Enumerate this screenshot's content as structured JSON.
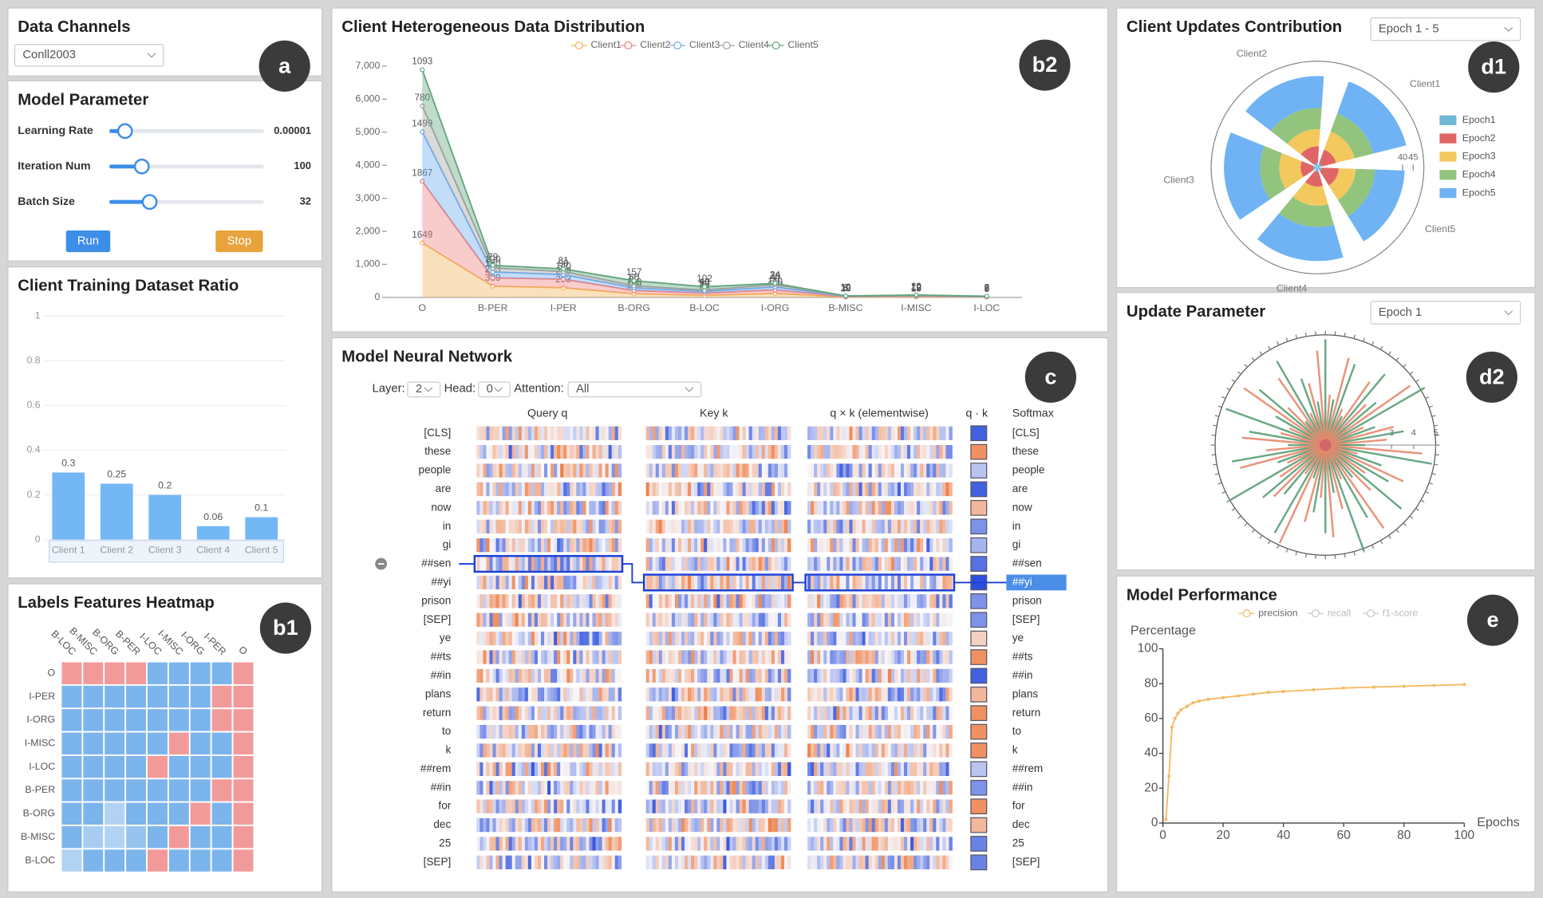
{
  "panels": {
    "data_channels": {
      "title": "Data Channels",
      "badge": "a",
      "dataset": "Conll2003"
    },
    "model_parameter": {
      "title": "Model Parameter",
      "params": [
        {
          "label": "Learning Rate",
          "value": 1e-05
        },
        {
          "label": "Iteration Num",
          "value": 100
        },
        {
          "label": "Batch Size",
          "value": 32
        }
      ],
      "buttons": [
        "Run",
        "Stop"
      ]
    },
    "dataset_ratio": {
      "title": "Client Training Dataset Ratio",
      "chart": {
        "type": "bar",
        "categories": [
          "Client 1",
          "Client 2",
          "Client 3",
          "Client 4",
          "Client 5"
        ],
        "values": [
          0.3,
          0.25,
          0.2,
          0.06,
          0.1
        ],
        "color": "#74b7f5",
        "ylim": [
          0,
          1
        ],
        "yticks": [
          0,
          0.2,
          0.4,
          0.6,
          0.8,
          1
        ],
        "grid": true
      }
    },
    "labels_heatmap": {
      "title": "Labels Features Heatmap",
      "badge": "b1",
      "chart": {
        "type": "heatmap",
        "x": [
          "B-LOC",
          "B-MISC",
          "B-ORG",
          "B-PER",
          "I-LOC",
          "I-MISC",
          "I-ORG",
          "I-PER",
          "O"
        ],
        "y": [
          "O",
          "I-PER",
          "I-ORG",
          "I-MISC",
          "I-LOC",
          "B-PER",
          "B-ORG",
          "B-MISC",
          "B-LOC"
        ],
        "values": [
          [
            1,
            1,
            1,
            1,
            0,
            0,
            0,
            0,
            1
          ],
          [
            0,
            0,
            0,
            0,
            0,
            0,
            0,
            1,
            1
          ],
          [
            0,
            0,
            0,
            0,
            0,
            0,
            0,
            1,
            1
          ],
          [
            0,
            0,
            0,
            0,
            0,
            1,
            0,
            0,
            1
          ],
          [
            0,
            0,
            0,
            0,
            1,
            0,
            0,
            0,
            1
          ],
          [
            0,
            0,
            0,
            0,
            0,
            0,
            0,
            1,
            1
          ],
          [
            0,
            0,
            0.3,
            0,
            0,
            0,
            1,
            0,
            1
          ],
          [
            0,
            0.25,
            0.3,
            0.15,
            0,
            1,
            0,
            0,
            1
          ],
          [
            0.3,
            0,
            0,
            0,
            1,
            0,
            0,
            0,
            1
          ]
        ]
      }
    },
    "distribution": {
      "title": "Client Heterogeneous Data Distribution",
      "badge": "b2",
      "chart": {
        "type": "stacked-area",
        "categories": [
          "O",
          "B-PER",
          "I-PER",
          "B-ORG",
          "B-LOC",
          "I-ORG",
          "B-MISC",
          "I-MISC",
          "I-LOC"
        ],
        "series": [
          {
            "name": "Client1",
            "color": "#f3b35a",
            "values": [
              1649,
              339,
              293,
              110,
              60,
              120,
              10,
              15,
              8
            ]
          },
          {
            "name": "Client2",
            "color": "#ef7f7f",
            "values": [
              1867,
              253,
              258,
              100,
              70,
              110,
              12,
              18,
              9
            ]
          },
          {
            "name": "Client3",
            "color": "#6aaaf0",
            "values": [
              1499,
              180,
              140,
              80,
              50,
              90,
              8,
              12,
              7
            ]
          },
          {
            "name": "Client4",
            "color": "#a3a3a3",
            "values": [
              780,
              120,
              90,
              60,
              40,
              70,
              6,
              10,
              5
            ]
          },
          {
            "name": "Client5",
            "color": "#62a57e",
            "values": [
              1093,
              79,
              81,
              157,
              102,
              34,
              10,
              20,
              8
            ]
          }
        ],
        "ylim": [
          0,
          7000
        ],
        "yticks": [
          0,
          {
            "value": 1000,
            "label": "1,000"
          },
          {
            "value": 2000,
            "label": "2,000"
          },
          {
            "value": 3000,
            "label": "3,000"
          },
          {
            "value": 4000,
            "label": "4,000"
          },
          {
            "value": 5000,
            "label": "5,000"
          },
          {
            "value": 6000,
            "label": "6,000"
          },
          {
            "value": 7000,
            "label": "7,000"
          }
        ]
      }
    },
    "network": {
      "title": "Model Neural Network",
      "badge": "c",
      "controls": {
        "layer_label": "Layer:",
        "layer": 2,
        "head_label": "Head:",
        "head": 0,
        "attention_label": "Attention:",
        "attention": "All"
      },
      "columns": [
        "Query q",
        "Key k",
        "q × k (elementwise)",
        "q · k",
        "Softmax"
      ],
      "tokens": [
        "[CLS]",
        "these",
        "people",
        "are",
        "now",
        "in",
        "gi",
        "##sen",
        "##yi",
        "prison",
        "[SEP]",
        "ye",
        "##ts",
        "##in",
        "plans",
        "return",
        "to",
        "k",
        "##rem",
        "##in",
        "for",
        "dec",
        "25",
        "[SEP]"
      ],
      "scores": [
        -0.9,
        0.8,
        -0.3,
        -0.9,
        0.5,
        -0.6,
        -0.4,
        -0.8,
        -1,
        -0.6,
        -0.6,
        0.3,
        0.8,
        -0.9,
        0.5,
        0.8,
        0.8,
        0.8,
        -0.3,
        -0.6,
        0.8,
        0.5,
        -0.7,
        -0.7
      ]
    },
    "contribution": {
      "title": "Client Updates Contribution",
      "badge": "d1",
      "epoch_select": "Epoch 1 - 5",
      "chart": {
        "type": "polar-bar",
        "categories": [
          "Client1",
          "Client2",
          "Client3",
          "Client4",
          "Client5"
        ],
        "series": [
          {
            "name": "Epoch1",
            "color": "#6fb8d8",
            "values": [
              2,
              2,
              2,
              2,
              2
            ]
          },
          {
            "name": "Epoch2",
            "color": "#e06666",
            "values": [
              7,
              8,
              6,
              7,
              8
            ]
          },
          {
            "name": "Epoch3",
            "color": "#f3c95e",
            "values": [
              9,
              8,
              10,
              9,
              8
            ]
          },
          {
            "name": "Epoch4",
            "color": "#93c47d",
            "values": [
              9,
              10,
              9,
              10,
              9
            ]
          },
          {
            "name": "Epoch5",
            "color": "#6fb3f5",
            "values": [
              16,
              15,
              17,
              16,
              14
            ]
          }
        ],
        "rlim": [
          0,
          50
        ],
        "rticks": [
          40,
          45
        ]
      }
    },
    "update_parameter": {
      "title": "Update Parameter",
      "badge": "d2",
      "epoch_select": "Epoch 1",
      "chart": {
        "type": "polar-spokes",
        "series": [
          {
            "color": "#5a9e78",
            "values": [
              4.8,
              2.1,
              3.9,
              1.5,
              4.2,
              3.0,
              5.2,
              2.4,
              3.6,
              1.8,
              4.9,
              2.7,
              3.3,
              4.5,
              1.9,
              3.8,
              5.1,
              2.2,
              4.0,
              3.1,
              1.6,
              4.6,
              2.9,
              3.7,
              5.0,
              2.3,
              4.3,
              1.7,
              3.5,
              4.8,
              2.6,
              3.9,
              1.4,
              4.4,
              3.2,
              2.0
            ]
          },
          {
            "color": "#e8876a",
            "values": [
              2.3,
              4.1,
              1.8,
              3.5,
              2.6,
              4.7,
              1.9,
              3.2,
              2.8,
              4.4,
              1.5,
              3.9,
              2.2,
              2.9,
              4.6,
              1.7,
              3.0,
              4.2,
              2.4,
              3.6,
              4.9,
              1.6,
              3.3,
              2.5,
              1.9,
              4.0,
              2.7,
              3.8,
              2.1,
              1.8,
              4.5,
              2.4,
              3.7,
              1.6,
              2.9,
              4.3
            ]
          }
        ],
        "rlim": [
          0,
          5
        ],
        "rticks": [
          3,
          4,
          5
        ]
      }
    },
    "performance": {
      "title": "Model Performance",
      "badge": "e",
      "chart": {
        "type": "line",
        "ylabel": "Percentage",
        "xlabel": "Epochs",
        "x": [
          1,
          2,
          3,
          4,
          5,
          6,
          8,
          10,
          12,
          15,
          20,
          25,
          30,
          35,
          40,
          50,
          60,
          70,
          80,
          90,
          100
        ],
        "series": [
          {
            "name": "precision",
            "color": "#f5b862",
            "values": [
              2,
              27,
              55,
              60,
              63,
              65,
              67,
              69,
              70,
              71,
              72,
              73,
              74,
              75,
              75.5,
              76.5,
              77.5,
              78,
              78.5,
              79,
              79.5
            ]
          },
          {
            "name": "recall",
            "color": "#c4c4c4"
          },
          {
            "name": "f1-score",
            "color": "#c4c4c4"
          }
        ],
        "xlim": [
          0,
          100
        ],
        "ylim": [
          0,
          100
        ],
        "xticks": [
          0,
          20,
          40,
          60,
          80,
          100
        ],
        "yticks": [
          0,
          20,
          40,
          60,
          80,
          100
        ]
      }
    }
  }
}
